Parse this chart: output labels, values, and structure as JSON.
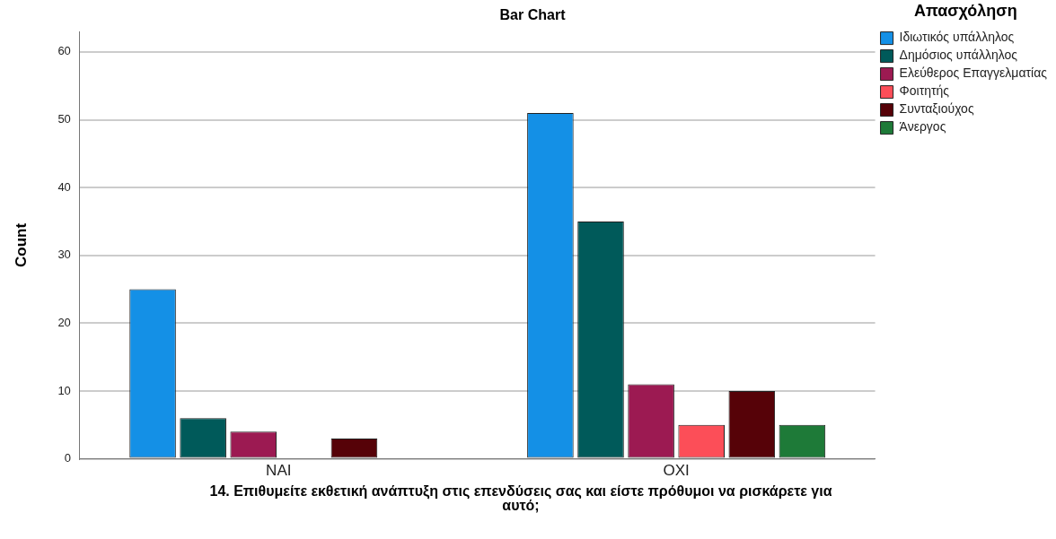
{
  "chart_data": {
    "type": "bar",
    "title": "Bar Chart",
    "xlabel": "14. Επιθυμείτε εκθετική ανάπτυξη στις επενδύσεις σας και είστε πρόθυμοι να ρισκάρετε για αυτό;",
    "ylabel": "Count",
    "legend_title": "Απασχόληση",
    "categories": [
      "NAI",
      "OXI"
    ],
    "series": [
      {
        "name": "Ιδιωτικός υπάλληλος",
        "color": "#1490e6",
        "values": [
          25,
          51
        ]
      },
      {
        "name": "Δημόσιος υπάλληλος",
        "color": "#005a5a",
        "values": [
          6,
          35
        ]
      },
      {
        "name": "Ελεύθερος Επαγγελματίας",
        "color": "#9c1a52",
        "values": [
          4,
          11
        ]
      },
      {
        "name": "Φοιτητής",
        "color": "#fc4e58",
        "values": [
          null,
          5
        ]
      },
      {
        "name": "Συνταξιούχος",
        "color": "#560208",
        "values": [
          3,
          10
        ]
      },
      {
        "name": "Άνεργος",
        "color": "#1e7a38",
        "values": [
          null,
          5
        ]
      }
    ],
    "ylim": [
      0,
      63
    ],
    "yticks": [
      0,
      10,
      20,
      30,
      40,
      50,
      60
    ],
    "grid": "y",
    "legend": "top right"
  }
}
